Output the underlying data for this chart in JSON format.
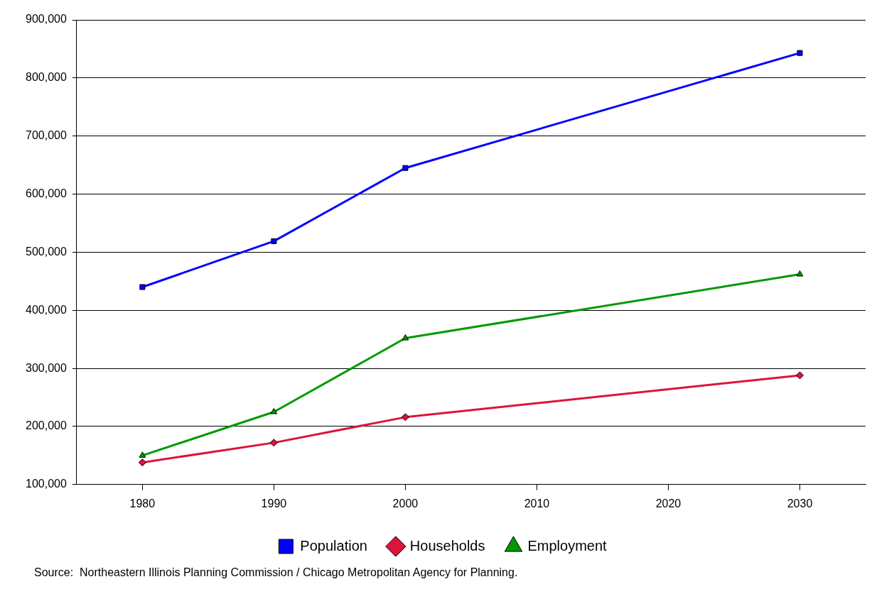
{
  "chart_data": {
    "type": "line",
    "x": [
      1980,
      1990,
      2000,
      2030
    ],
    "series": [
      {
        "name": "Population",
        "color": "#0000ff",
        "marker": "square",
        "values": [
          440000,
          519000,
          645000,
          843000
        ]
      },
      {
        "name": "Households",
        "color": "#dc143c",
        "marker": "diamond",
        "values": [
          138000,
          172000,
          216000,
          288000
        ]
      },
      {
        "name": "Employment",
        "color": "#009900",
        "marker": "triangle",
        "values": [
          150000,
          225000,
          352000,
          462000
        ]
      }
    ],
    "xlim": [
      1975,
      2035
    ],
    "xticks": [
      1980,
      1990,
      2000,
      2010,
      2020,
      2030
    ],
    "ylim": [
      100000,
      900000
    ],
    "yticks": [
      {
        "value": 100000,
        "label": "100,000"
      },
      {
        "value": 200000,
        "label": "200,000"
      },
      {
        "value": 300000,
        "label": "300,000"
      },
      {
        "value": 400000,
        "label": "400,000"
      },
      {
        "value": 500000,
        "label": "500,000"
      },
      {
        "value": 600000,
        "label": "600,000"
      },
      {
        "value": 700000,
        "label": "700,000"
      },
      {
        "value": 800000,
        "label": "800,000"
      },
      {
        "value": 900000,
        "label": "900,000"
      }
    ],
    "grid": "y",
    "legend": "bottom",
    "line_style": "solid",
    "annotations": [
      "Source:  Northeastern Illinois Planning Commission / Chicago Metropolitan Agency for Planning."
    ]
  }
}
